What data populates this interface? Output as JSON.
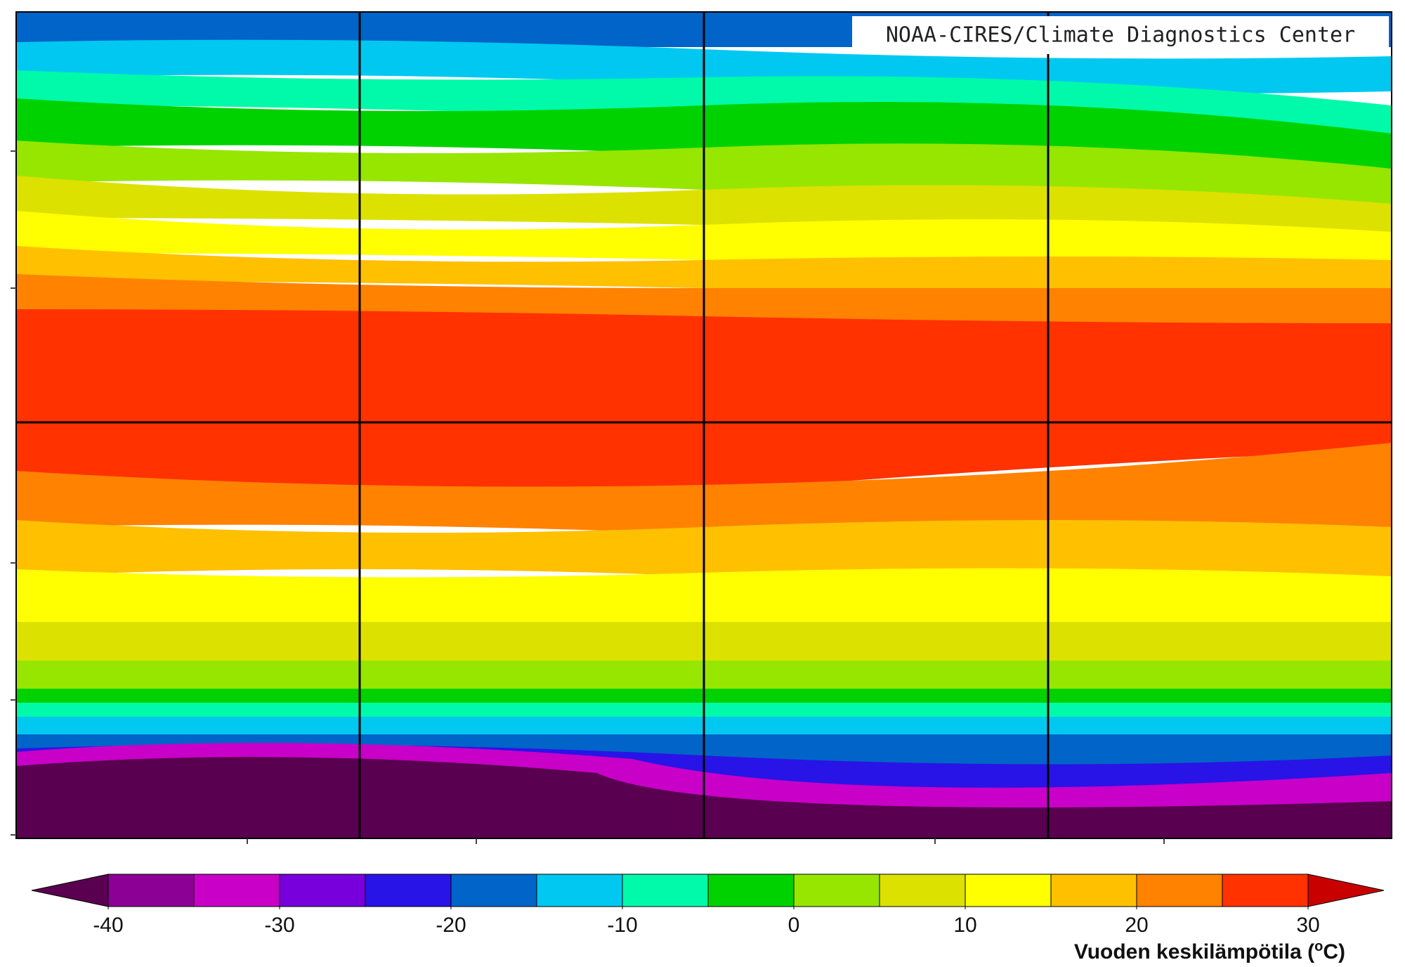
{
  "map": {
    "credit": "NOAA-CIRES/Climate Diagnostics Center"
  },
  "colorbar": {
    "levels": [
      -40,
      -35,
      -30,
      -25,
      -20,
      -15,
      -10,
      -5,
      0,
      5,
      10,
      15,
      20,
      25,
      30
    ],
    "colors": [
      "#5a0050",
      "#8c0096",
      "#c800c8",
      "#7800dc",
      "#2814e6",
      "#0064c8",
      "#00c8f0",
      "#00faaa",
      "#00d200",
      "#96e600",
      "#dce100",
      "#ffff00",
      "#ffc000",
      "#ff8200",
      "#ff3200",
      "#c80000"
    ],
    "ticks": [
      -40,
      -30,
      -20,
      -10,
      0,
      10,
      20,
      30
    ],
    "label": [
      "Vuoden keskilämpötila (",
      "o",
      "C)"
    ]
  }
}
